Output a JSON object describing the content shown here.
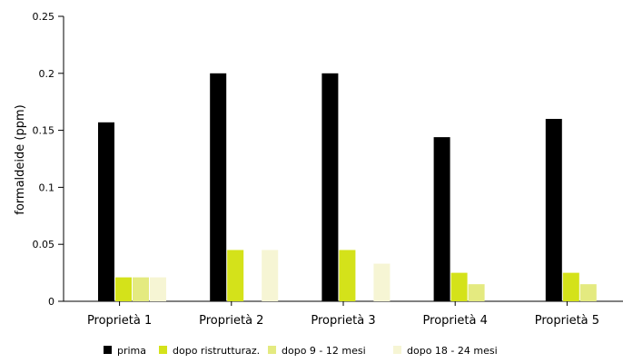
{
  "chart_data": {
    "type": "bar",
    "ylabel": "formaldeide (ppm)",
    "ylim": [
      0,
      0.25
    ],
    "yticks": [
      "0",
      "0.05",
      "0.1",
      "0.15",
      "0.2",
      "0.25"
    ],
    "grid": false,
    "legend_position": "bottom",
    "categories": [
      "Proprietà 1",
      "Proprietà 2",
      "Proprietà 3",
      "Proprietà 4",
      "Proprietà 5"
    ],
    "series": [
      {
        "name": "prima",
        "color": "#000000",
        "values": [
          0.157,
          0.2,
          0.2,
          0.144,
          0.16
        ]
      },
      {
        "name": "dopo ristrutturaz.",
        "color": "#d4e21a",
        "values": [
          0.021,
          0.045,
          0.045,
          0.025,
          0.025
        ]
      },
      {
        "name": "dopo 9 - 12 mesi",
        "color": "#e4ea80",
        "values": [
          0.021,
          0,
          0,
          0.015,
          0.015
        ]
      },
      {
        "name": "dopo 18 - 24 mesi",
        "color": "#f6f5d4",
        "values": [
          0.021,
          0.045,
          0.033,
          0,
          0
        ]
      }
    ]
  }
}
